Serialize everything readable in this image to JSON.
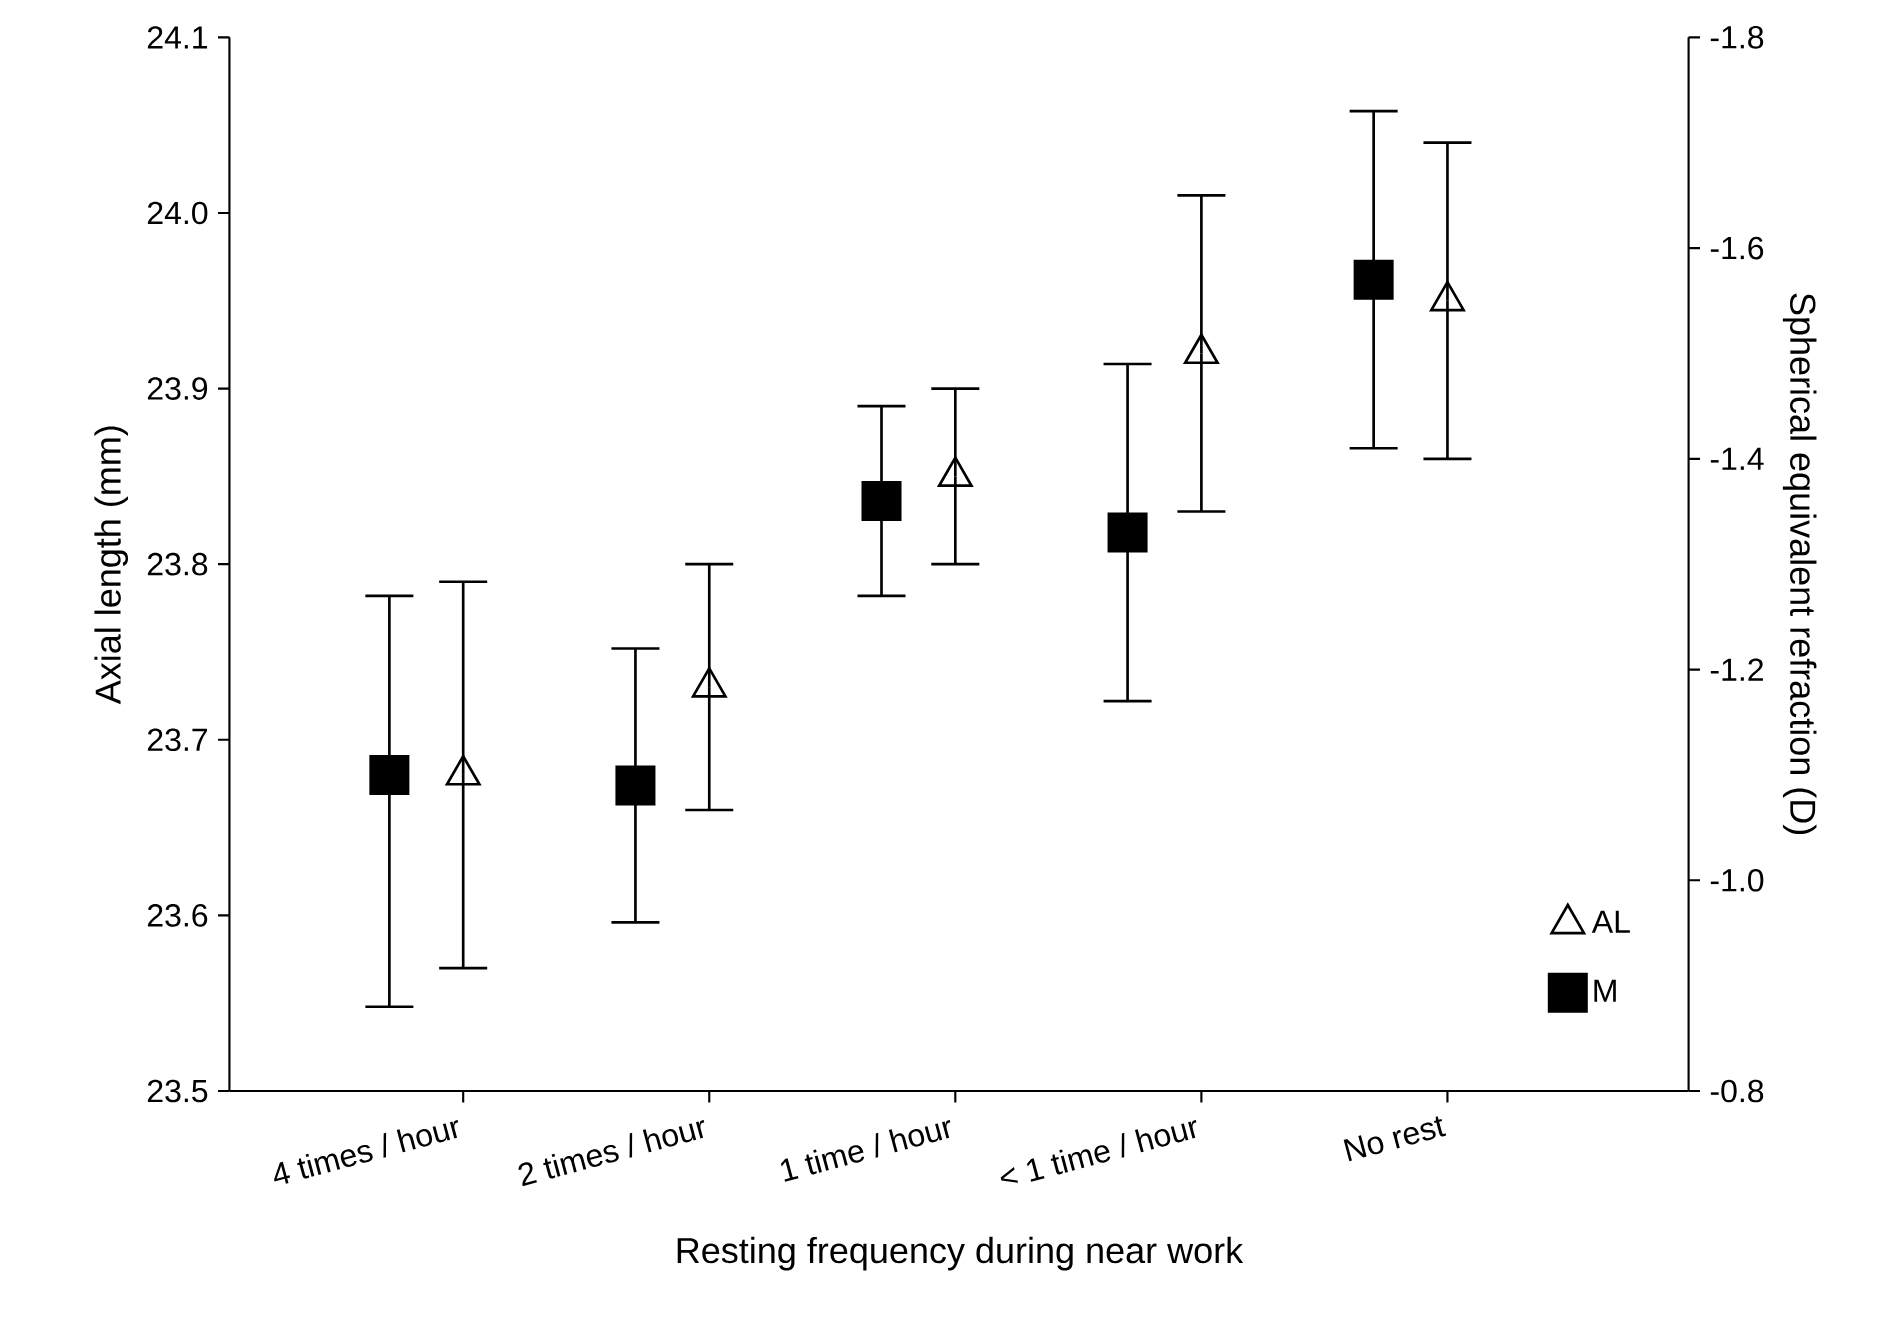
{
  "chart_data": {
    "type": "scatter",
    "xlabel": "Resting frequency during near work",
    "ylabel": "Axial length (mm)",
    "y2label": "Spherical equivalent refraction (D)",
    "categories": [
      "4 times / hour",
      "2 times / hour",
      "1 time / hour",
      "< 1 time / hour",
      "No rest"
    ],
    "series": [
      {
        "name": "AL",
        "color": "#000000",
        "marker": "triangle",
        "axis": "y",
        "values": [
          23.68,
          23.73,
          23.85,
          23.92,
          23.95
        ],
        "errors": [
          [
            23.57,
            23.79
          ],
          [
            23.66,
            23.8
          ],
          [
            23.8,
            23.9
          ],
          [
            23.83,
            24.01
          ],
          [
            23.86,
            24.04
          ]
        ]
      },
      {
        "name": "M",
        "color": "#000000",
        "marker": "square",
        "axis": "y2",
        "values": [
          -1.1,
          -1.09,
          -1.36,
          -1.33,
          -1.57
        ],
        "errors": [
          [
            -1.27,
            -0.88
          ],
          [
            -1.22,
            -0.96
          ],
          [
            -1.45,
            -1.27
          ],
          [
            -1.49,
            -1.17
          ],
          [
            -1.73,
            -1.41
          ]
        ]
      }
    ],
    "ylim": [
      23.5,
      24.1
    ],
    "yticks": [
      {
        "value": 23.5,
        "label": "23.5"
      },
      {
        "value": 23.6,
        "label": "23.6"
      },
      {
        "value": 23.7,
        "label": "23.7"
      },
      {
        "value": 23.8,
        "label": "23.8"
      },
      {
        "value": 23.9,
        "label": "23.9"
      },
      {
        "value": 24.0,
        "label": "24.0"
      },
      {
        "value": 24.1,
        "label": "24.1"
      }
    ],
    "y2lim": [
      -0.8,
      -1.8
    ],
    "y2ticks": [
      {
        "value": -0.8,
        "label": "-0.8"
      },
      {
        "value": -1.0,
        "label": "-1.0"
      },
      {
        "value": -1.2,
        "label": "-1.2"
      },
      {
        "value": -1.4,
        "label": "-1.4"
      },
      {
        "value": -1.6,
        "label": "-1.6"
      },
      {
        "value": -1.8,
        "label": "-1.8"
      }
    ],
    "legend": "bottom right"
  }
}
